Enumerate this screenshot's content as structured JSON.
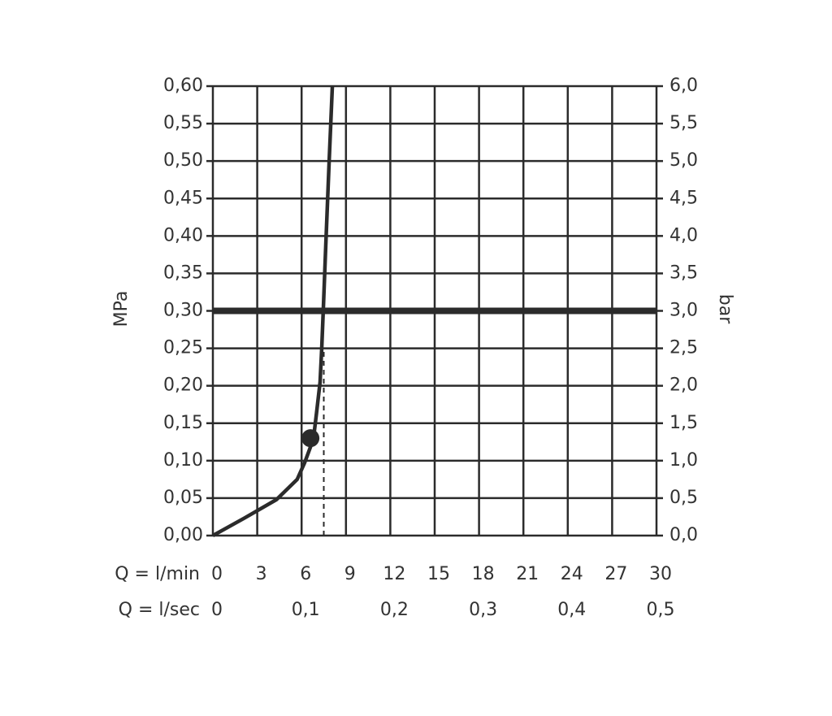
{
  "chart_data": {
    "type": "line",
    "ylabel": "MPa",
    "y2label": "bar",
    "xlabel": "Q = l/min",
    "x2label": "Q = l/sec",
    "x": [
      0,
      2.1,
      4.3,
      5.7,
      6.2,
      6.8,
      7.0,
      7.25,
      7.36,
      7.47,
      7.64,
      7.86,
      8.08
    ],
    "series": [
      {
        "color": "#2b2b2b",
        "values": [
          0,
          0.023,
          0.048,
          0.075,
          0.097,
          0.129,
          0.162,
          0.205,
          0.249,
          0.303,
          0.39,
          0.498,
          0.6
        ]
      }
    ],
    "markers": [
      {
        "x": 6.6,
        "y": 0.13
      }
    ],
    "reference_line": {
      "y": 0.3
    },
    "dashed_line": {
      "x": 7.5,
      "y": [
        0,
        0.25
      ]
    },
    "xlim": [
      0,
      30
    ],
    "xticks": [
      0,
      3,
      6,
      9,
      12,
      15,
      18,
      21,
      24,
      27,
      30
    ],
    "x2lim": [
      0,
      0.5
    ],
    "x2ticks": [
      0,
      {
        "value": 0.1,
        "label": "0,1"
      },
      {
        "value": 0.2,
        "label": "0,2"
      },
      {
        "value": 0.3,
        "label": "0,3"
      },
      {
        "value": 0.4,
        "label": "0,4"
      },
      {
        "value": 0.5,
        "label": "0,5"
      }
    ],
    "ylim": [
      0,
      0.6
    ],
    "yticks": [
      {
        "value": 0,
        "label": "0,00"
      },
      {
        "value": 0.05,
        "label": "0,05"
      },
      {
        "value": 0.1,
        "label": "0,10"
      },
      {
        "value": 0.15,
        "label": "0,15"
      },
      {
        "value": 0.2,
        "label": "0,20"
      },
      {
        "value": 0.25,
        "label": "0,25"
      },
      {
        "value": 0.3,
        "label": "0,30"
      },
      {
        "value": 0.35,
        "label": "0,35"
      },
      {
        "value": 0.4,
        "label": "0,40"
      },
      {
        "value": 0.45,
        "label": "0,45"
      },
      {
        "value": 0.5,
        "label": "0,50"
      },
      {
        "value": 0.55,
        "label": "0,55"
      },
      {
        "value": 0.6,
        "label": "0,60"
      }
    ],
    "y2lim": [
      0,
      6
    ],
    "y2ticks": [
      {
        "value": 0,
        "label": "0,0"
      },
      {
        "value": 0.5,
        "label": "0,5"
      },
      {
        "value": 1,
        "label": "1,0"
      },
      {
        "value": 1.5,
        "label": "1,5"
      },
      {
        "value": 2,
        "label": "2,0"
      },
      {
        "value": 2.5,
        "label": "2,5"
      },
      {
        "value": 3,
        "label": "3,0"
      },
      {
        "value": 3.5,
        "label": "3,5"
      },
      {
        "value": 4,
        "label": "4,0"
      },
      {
        "value": 4.5,
        "label": "4,5"
      },
      {
        "value": 5,
        "label": "5,0"
      },
      {
        "value": 5.5,
        "label": "5,5"
      },
      {
        "value": 6,
        "label": "6,0"
      }
    ],
    "grid": true
  }
}
